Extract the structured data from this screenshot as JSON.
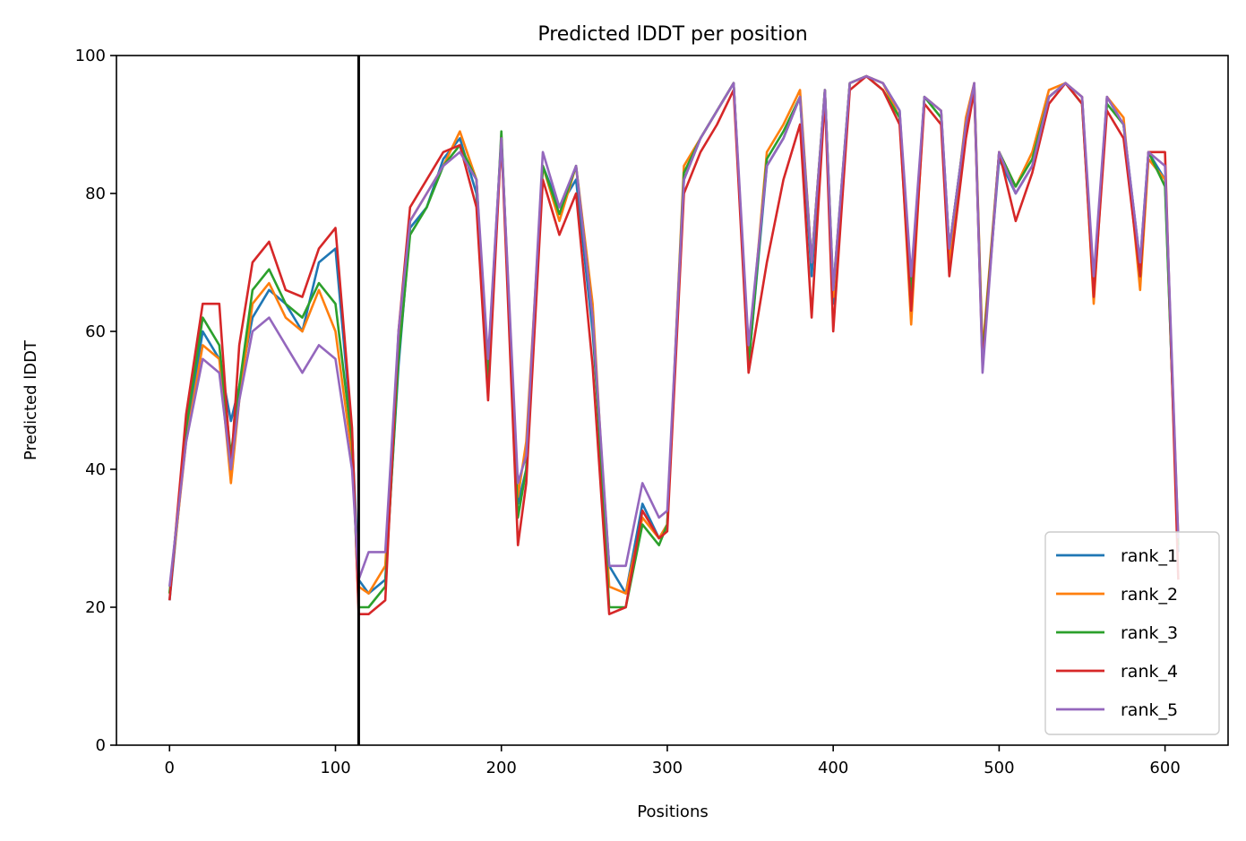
{
  "chart_data": {
    "type": "line",
    "title": "Predicted lDDT per position",
    "xlabel": "Positions",
    "ylabel": "Predicted lDDT",
    "xlim": [
      -32,
      638
    ],
    "ylim": [
      0,
      100
    ],
    "xticks": [
      0,
      100,
      200,
      300,
      400,
      500,
      600
    ],
    "yticks": [
      0,
      20,
      40,
      60,
      80,
      100
    ],
    "grid": false,
    "legend_position": "lower-right",
    "vertical_line_x": 114,
    "series": [
      {
        "name": "rank_1",
        "color": "#1f77b4",
        "x": [
          0,
          10,
          20,
          30,
          37,
          42,
          50,
          60,
          70,
          80,
          90,
          100,
          110,
          114,
          120,
          130,
          138,
          145,
          155,
          165,
          175,
          185,
          192,
          200,
          210,
          215,
          225,
          235,
          245,
          255,
          265,
          275,
          285,
          295,
          300,
          310,
          320,
          330,
          340,
          349,
          360,
          370,
          380,
          387,
          395,
          400,
          410,
          420,
          430,
          440,
          447,
          455,
          465,
          470,
          480,
          485,
          490,
          500,
          510,
          520,
          530,
          540,
          550,
          557,
          565,
          575,
          585,
          590,
          600,
          608
        ],
        "y": [
          21,
          45,
          60,
          56,
          47,
          52,
          62,
          66,
          64,
          60,
          70,
          72,
          45,
          24,
          22,
          24,
          55,
          75,
          78,
          85,
          88,
          80,
          55,
          88,
          35,
          40,
          84,
          78,
          82,
          60,
          26,
          22,
          35,
          30,
          32,
          82,
          88,
          92,
          96,
          55,
          84,
          88,
          94,
          68,
          95,
          64,
          96,
          97,
          96,
          92,
          65,
          94,
          92,
          72,
          90,
          96,
          56,
          85,
          80,
          84,
          94,
          96,
          94,
          66,
          94,
          90,
          70,
          86,
          82,
          28
        ]
      },
      {
        "name": "rank_2",
        "color": "#ff7f0e",
        "x": [
          0,
          10,
          20,
          30,
          37,
          42,
          50,
          60,
          70,
          80,
          90,
          100,
          110,
          114,
          120,
          130,
          138,
          145,
          155,
          165,
          175,
          185,
          192,
          200,
          210,
          215,
          225,
          235,
          245,
          255,
          265,
          275,
          285,
          295,
          300,
          310,
          320,
          330,
          340,
          349,
          360,
          370,
          380,
          387,
          395,
          400,
          410,
          420,
          430,
          440,
          447,
          455,
          465,
          470,
          480,
          485,
          490,
          500,
          510,
          520,
          530,
          540,
          550,
          557,
          565,
          575,
          585,
          590,
          600,
          608
        ],
        "y": [
          22,
          44,
          58,
          56,
          38,
          50,
          64,
          67,
          62,
          60,
          66,
          60,
          42,
          23,
          22,
          26,
          58,
          76,
          80,
          84,
          89,
          82,
          52,
          88,
          36,
          44,
          84,
          76,
          84,
          64,
          23,
          22,
          33,
          30,
          32,
          84,
          88,
          92,
          96,
          56,
          86,
          90,
          95,
          70,
          95,
          65,
          96,
          97,
          96,
          91,
          61,
          94,
          92,
          70,
          91,
          96,
          57,
          86,
          81,
          86,
          95,
          96,
          94,
          64,
          94,
          91,
          66,
          85,
          82,
          30
        ]
      },
      {
        "name": "rank_3",
        "color": "#2ca02c",
        "x": [
          0,
          10,
          20,
          30,
          37,
          42,
          50,
          60,
          70,
          80,
          90,
          100,
          110,
          114,
          120,
          130,
          138,
          145,
          155,
          165,
          175,
          185,
          192,
          200,
          210,
          215,
          225,
          235,
          245,
          255,
          265,
          275,
          285,
          295,
          300,
          310,
          320,
          330,
          340,
          349,
          360,
          370,
          380,
          387,
          395,
          400,
          410,
          420,
          430,
          440,
          447,
          455,
          465,
          470,
          480,
          485,
          490,
          500,
          510,
          520,
          530,
          540,
          550,
          557,
          565,
          575,
          585,
          590,
          600,
          608
        ],
        "y": [
          22,
          46,
          62,
          58,
          42,
          52,
          66,
          69,
          64,
          62,
          67,
          64,
          44,
          20,
          20,
          23,
          56,
          74,
          78,
          84,
          87,
          82,
          52,
          89,
          33,
          40,
          84,
          77,
          84,
          62,
          20,
          20,
          32,
          29,
          32,
          83,
          88,
          92,
          96,
          55,
          85,
          89,
          94,
          70,
          95,
          66,
          96,
          97,
          95,
          91,
          66,
          94,
          91,
          72,
          90,
          95,
          56,
          86,
          81,
          85,
          94,
          96,
          93,
          66,
          93,
          90,
          68,
          86,
          81,
          29
        ]
      },
      {
        "name": "rank_4",
        "color": "#d62728",
        "x": [
          0,
          10,
          20,
          30,
          37,
          42,
          50,
          60,
          70,
          80,
          90,
          100,
          110,
          114,
          120,
          130,
          138,
          145,
          155,
          165,
          175,
          185,
          192,
          200,
          210,
          215,
          225,
          235,
          245,
          255,
          265,
          275,
          285,
          295,
          300,
          310,
          320,
          330,
          340,
          349,
          360,
          370,
          380,
          387,
          395,
          400,
          410,
          420,
          430,
          440,
          447,
          455,
          465,
          470,
          480,
          485,
          490,
          500,
          510,
          520,
          530,
          540,
          550,
          557,
          565,
          575,
          585,
          590,
          600,
          608
        ],
        "y": [
          21,
          48,
          64,
          64,
          40,
          58,
          70,
          73,
          66,
          65,
          72,
          75,
          46,
          19,
          19,
          21,
          60,
          78,
          82,
          86,
          87,
          78,
          50,
          88,
          29,
          38,
          82,
          74,
          80,
          55,
          19,
          20,
          34,
          30,
          31,
          80,
          86,
          90,
          95,
          54,
          70,
          82,
          90,
          62,
          94,
          60,
          95,
          97,
          95,
          90,
          63,
          93,
          90,
          68,
          88,
          95,
          55,
          86,
          76,
          83,
          93,
          96,
          93,
          65,
          92,
          88,
          68,
          86,
          86,
          24
        ]
      },
      {
        "name": "rank_5",
        "color": "#9467bd",
        "x": [
          0,
          10,
          20,
          30,
          37,
          42,
          50,
          60,
          70,
          80,
          90,
          100,
          110,
          114,
          120,
          130,
          138,
          145,
          155,
          165,
          175,
          185,
          192,
          200,
          210,
          215,
          225,
          235,
          245,
          255,
          265,
          275,
          285,
          295,
          300,
          310,
          320,
          330,
          340,
          349,
          360,
          370,
          380,
          387,
          395,
          400,
          410,
          420,
          430,
          440,
          447,
          455,
          465,
          470,
          480,
          485,
          490,
          500,
          510,
          520,
          530,
          540,
          550,
          557,
          565,
          575,
          585,
          590,
          600,
          608
        ],
        "y": [
          23,
          44,
          56,
          54,
          40,
          50,
          60,
          62,
          58,
          54,
          58,
          56,
          40,
          24,
          28,
          28,
          60,
          76,
          80,
          84,
          86,
          82,
          56,
          88,
          38,
          42,
          86,
          78,
          84,
          62,
          26,
          26,
          38,
          33,
          34,
          82,
          88,
          92,
          96,
          58,
          84,
          88,
          94,
          70,
          95,
          66,
          96,
          97,
          96,
          92,
          68,
          94,
          92,
          72,
          90,
          96,
          54,
          86,
          80,
          84,
          94,
          96,
          94,
          68,
          94,
          90,
          70,
          86,
          84,
          30
        ]
      }
    ]
  }
}
